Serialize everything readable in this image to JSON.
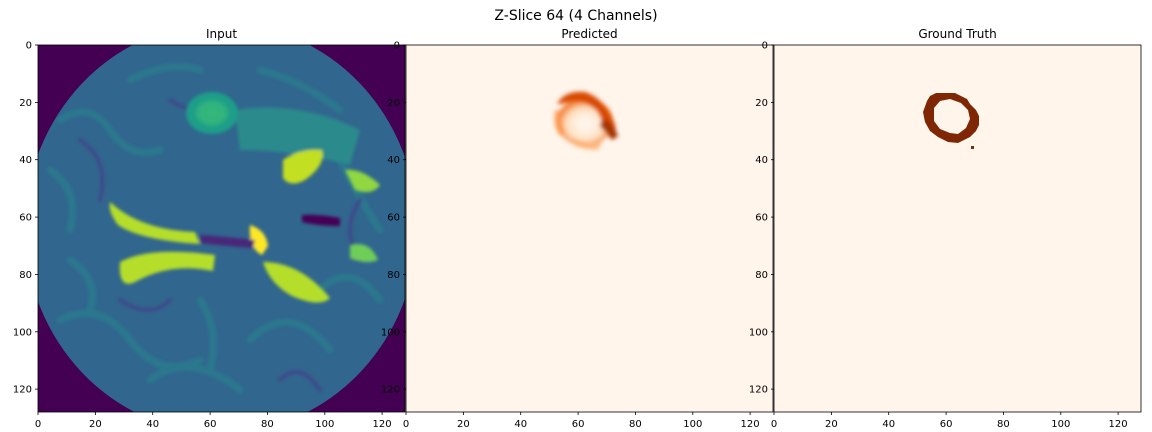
{
  "figure": {
    "title": "Z-Slice 64 (4 Channels)"
  },
  "panels": [
    {
      "title": "Input",
      "image": "brain-mri-slice",
      "colormap": "viridis",
      "xticks": [
        "0",
        "20",
        "40",
        "60",
        "80",
        "100",
        "120"
      ],
      "yticks": [
        "0",
        "20",
        "40",
        "60",
        "80",
        "100",
        "120"
      ]
    },
    {
      "title": "Predicted",
      "image": "predicted-tumor-mask",
      "colormap": "oranges",
      "xticks": [
        "0",
        "20",
        "40",
        "60",
        "80",
        "100",
        "120"
      ],
      "yticks": [
        "0",
        "20",
        "40",
        "60",
        "80",
        "100",
        "120"
      ]
    },
    {
      "title": "Ground Truth",
      "image": "ground-truth-tumor-mask",
      "colormap": "oranges",
      "xticks": [
        "0",
        "20",
        "40",
        "60",
        "80",
        "100",
        "120"
      ],
      "yticks": [
        "0",
        "20",
        "40",
        "60",
        "80",
        "100",
        "120"
      ]
    }
  ],
  "colors": {
    "viridis_dark": "#440154",
    "viridis_teal": "#2a788e",
    "viridis_green": "#35b779",
    "viridis_yellow": "#fde725",
    "oranges_bg": "#fff5eb",
    "oranges_mid": "#e6550d",
    "oranges_dark": "#7f2704"
  }
}
